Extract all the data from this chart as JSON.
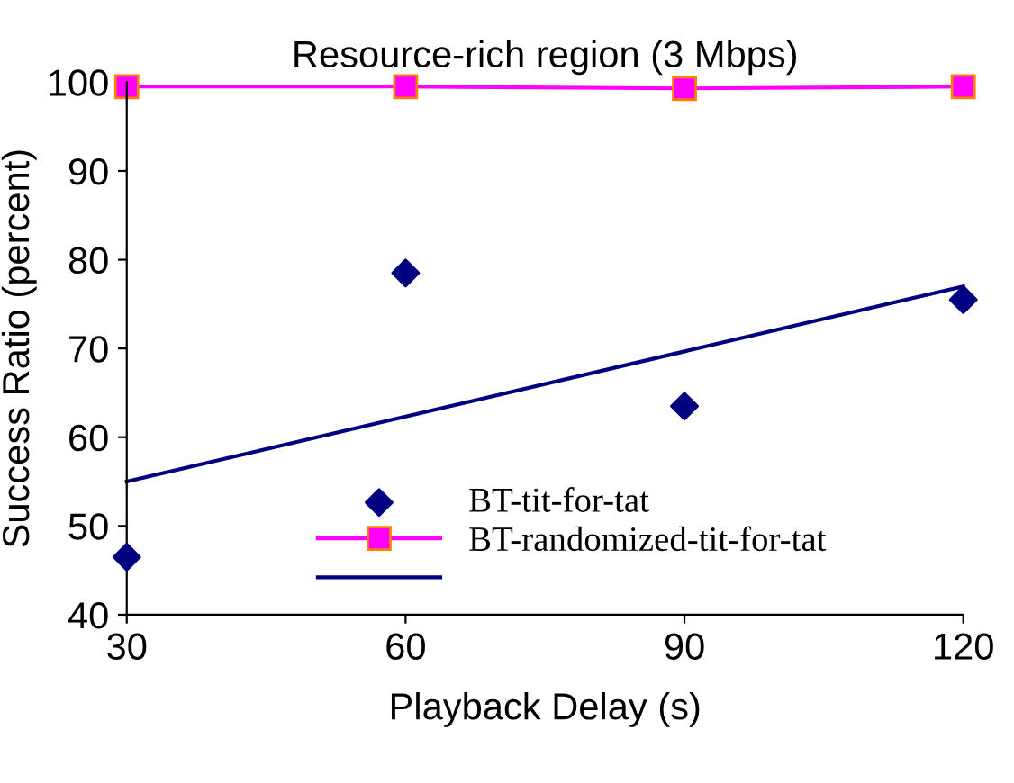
{
  "chart_data": {
    "type": "scatter",
    "title": "Resource-rich region (3 Mbps)",
    "xlabel": "Playback Delay (s)",
    "ylabel": "Success Ratio (percent)",
    "xlim": [
      30,
      120
    ],
    "xticks": [
      30,
      60,
      90,
      120
    ],
    "ylim": [
      40,
      100
    ],
    "yticks": [
      40,
      50,
      60,
      70,
      80,
      90,
      100
    ],
    "grid": false,
    "legend": "bottom right",
    "series": [
      {
        "name": "BT-tit-for-tat",
        "marker": "diamond",
        "color": "#000080",
        "x": [
          30,
          60,
          90,
          120
        ],
        "values": [
          46.5,
          78.5,
          63.5,
          75.5
        ]
      },
      {
        "name": "BT-randomized-tit-for-tat",
        "type": "line",
        "marker": "square",
        "color": "#ff00ff",
        "x": [
          30,
          60,
          90,
          120
        ],
        "values": [
          99.5,
          99.5,
          99.3,
          99.5
        ]
      },
      {
        "type": "line",
        "marker": "none",
        "color": "#000080",
        "x": [
          30,
          120
        ],
        "values": [
          55,
          77
        ]
      }
    ]
  }
}
